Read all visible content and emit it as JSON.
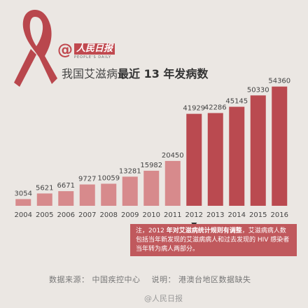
{
  "brand": {
    "at": "@",
    "name": "人民日报",
    "sub": "PEOPLE'S DAILY"
  },
  "title": {
    "prefix": "我国艾滋病",
    "highlight": "最近 13 年发病数"
  },
  "colors": {
    "bar": "#d78a8c",
    "bar_highlight": "#ba4a50",
    "accent": "#c0494f",
    "ribbon": "#b9474d"
  },
  "chart_data": {
    "type": "bar",
    "categories": [
      "2004",
      "2005",
      "2006",
      "2007",
      "2008",
      "2009",
      "2010",
      "2011",
      "2012",
      "2013",
      "2014",
      "2015",
      "2016"
    ],
    "values": [
      3054,
      5621,
      6671,
      9727,
      10059,
      13281,
      15982,
      20450,
      41929,
      42286,
      45145,
      50330,
      54360
    ],
    "highlight_from": "2012",
    "ylim": [
      0,
      60000
    ],
    "grid": false,
    "data_labels": true
  },
  "note": {
    "lead": "注，2012",
    "bold": "年对艾滋病统计规则有调整",
    "rest": "，艾滋病病人数包括当年新发现的艾滋病病人和过去发现的 HIV 感染者当年转为病人两部分。"
  },
  "source": {
    "label": "数据来源：",
    "value": "中国疾控中心",
    "note_label": "说明：",
    "note_value": "港澳台地区数据缺失"
  },
  "watermark": "@人民日报"
}
